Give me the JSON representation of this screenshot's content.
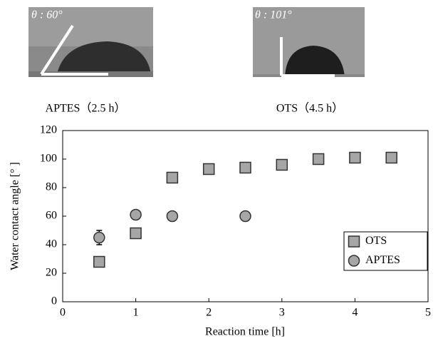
{
  "photos": [
    {
      "label": "θ : 60°",
      "caption": "APTES（2.5 h）"
    },
    {
      "label": "θ : 101°",
      "caption": "OTS（4.5 h）"
    }
  ],
  "chart_data": {
    "type": "scatter",
    "xlabel": "Reaction time [h]",
    "ylabel": "Water contact angle [° ]",
    "xlim": [
      0,
      5
    ],
    "xticks": [
      0,
      1,
      2,
      3,
      4,
      5
    ],
    "ylim": [
      0,
      120
    ],
    "yticks": [
      0,
      20,
      40,
      60,
      80,
      100,
      120
    ],
    "grid": false,
    "legend": "right",
    "series": [
      {
        "name": "OTS",
        "marker": "square",
        "color": "#a6a6a6",
        "x": [
          0.5,
          1,
          1.5,
          2,
          2.5,
          3,
          3.5,
          4,
          4.5
        ],
        "values": [
          28,
          48,
          87,
          93,
          94,
          96,
          100,
          101,
          101
        ]
      },
      {
        "name": "APTES",
        "marker": "circle",
        "color": "#a6a6a6",
        "x": [
          0.5,
          1,
          1.5,
          2.5
        ],
        "values": [
          45,
          61,
          60,
          60
        ],
        "errors": [
          5,
          1,
          3,
          1
        ]
      }
    ]
  }
}
